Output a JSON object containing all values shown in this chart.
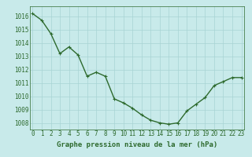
{
  "x": [
    0,
    1,
    2,
    3,
    4,
    5,
    6,
    7,
    8,
    9,
    10,
    11,
    12,
    13,
    14,
    15,
    16,
    17,
    18,
    19,
    20,
    21,
    22,
    23
  ],
  "y": [
    1016.2,
    1015.7,
    1014.7,
    1013.2,
    1013.7,
    1013.1,
    1011.5,
    1011.8,
    1011.5,
    1009.8,
    1009.5,
    1009.1,
    1008.6,
    1008.2,
    1008.0,
    1007.9,
    1008.0,
    1008.9,
    1009.4,
    1009.9,
    1010.8,
    1011.1,
    1011.4,
    1011.4
  ],
  "line_color": "#2d6a2d",
  "marker": "+",
  "bg_color": "#c8eaea",
  "grid_color": "#a8d4d4",
  "xlabel": "Graphe pression niveau de la mer (hPa)",
  "xlabel_color": "#2d6a2d",
  "tick_color": "#2d6a2d",
  "ylim": [
    1007.5,
    1016.75
  ],
  "yticks": [
    1008,
    1009,
    1010,
    1011,
    1012,
    1013,
    1014,
    1015,
    1016
  ],
  "xticks": [
    0,
    1,
    2,
    3,
    4,
    5,
    6,
    7,
    8,
    9,
    10,
    11,
    12,
    13,
    14,
    15,
    16,
    17,
    18,
    19,
    20,
    21,
    22,
    23
  ],
  "xlim": [
    -0.3,
    23.3
  ],
  "linewidth": 1.0,
  "markersize": 3.5,
  "tick_fontsize": 5.5,
  "xlabel_fontsize": 6.5
}
